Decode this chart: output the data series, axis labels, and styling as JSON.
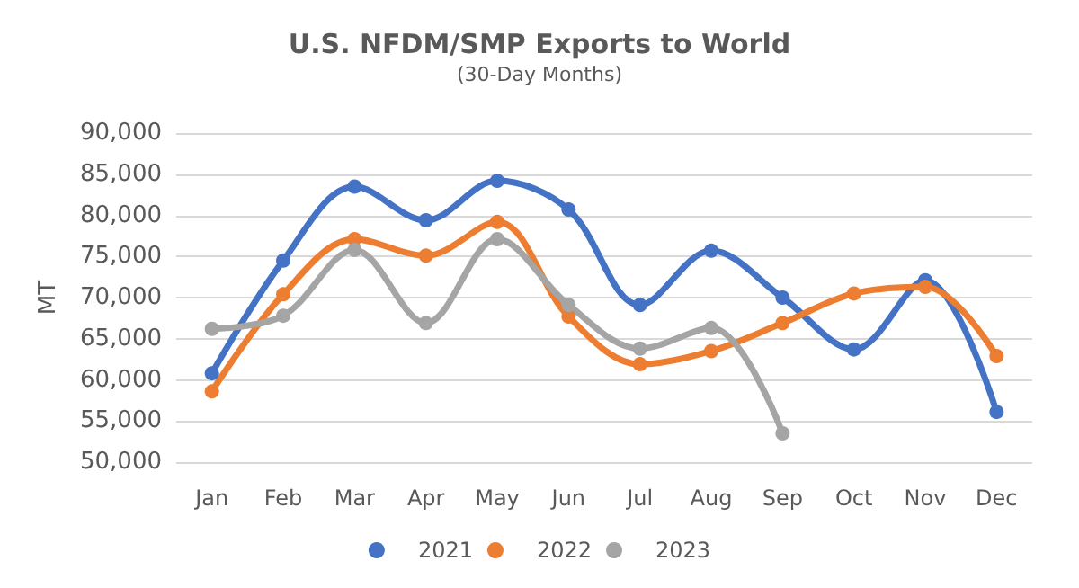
{
  "chart_data": {
    "type": "line",
    "title": "U.S. NFDM/SMP Exports to World",
    "subtitle": "(30-Day Months)",
    "ylabel": "MT",
    "categories": [
      "Jan",
      "Feb",
      "Mar",
      "Apr",
      "May",
      "Jun",
      "Jul",
      "Aug",
      "Sep",
      "Oct",
      "Nov",
      "Dec"
    ],
    "series": [
      {
        "name": "2021",
        "color": "#4472c4",
        "values": [
          60800,
          74500,
          83500,
          79400,
          84200,
          80700,
          69100,
          75700,
          70000,
          63700,
          72100,
          56100
        ]
      },
      {
        "name": "2022",
        "color": "#ed7d31",
        "values": [
          58600,
          70400,
          77100,
          75100,
          79200,
          67700,
          61900,
          63500,
          66900,
          70500,
          71300,
          62900
        ]
      },
      {
        "name": "2023",
        "color": "#a5a5a5",
        "values": [
          66200,
          67800,
          75800,
          66900,
          77100,
          69100,
          63800,
          66300,
          53500,
          null,
          null,
          null
        ]
      }
    ],
    "ylim": [
      50000,
      90000
    ],
    "yticks": [
      {
        "value": 50000,
        "label": "50,000"
      },
      {
        "value": 55000,
        "label": "55,000"
      },
      {
        "value": 60000,
        "label": "60,000"
      },
      {
        "value": 65000,
        "label": "65,000"
      },
      {
        "value": 70000,
        "label": "70,000"
      },
      {
        "value": 75000,
        "label": "75,000"
      },
      {
        "value": 80000,
        "label": "80,000"
      },
      {
        "value": 85000,
        "label": "85,000"
      },
      {
        "value": 90000,
        "label": "90,000"
      }
    ],
    "grid": "y",
    "legend": "bottom",
    "marker": "circle",
    "line_style": "solid"
  }
}
